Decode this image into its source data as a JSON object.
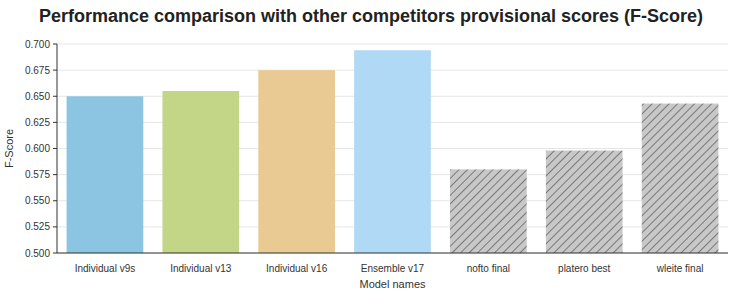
{
  "chart_data": {
    "type": "bar",
    "title": "Performance comparison with other competitors provisional scores (F-Score)",
    "x_label": "Model names",
    "y_label": "F-Score",
    "categories": [
      "Individual v9s",
      "Individual v13",
      "Individual v16",
      "Ensemble v17",
      "nofto final",
      "platero best",
      "wleite final"
    ],
    "values": [
      0.65,
      0.655,
      0.675,
      0.694,
      0.58,
      0.598,
      0.643
    ],
    "colors": [
      "#8cc5e2",
      "#c3d687",
      "#eaca93",
      "#afd9f4",
      "#c8c8c8",
      "#c8c8c8",
      "#c8c8c8"
    ],
    "ylim": [
      0.5,
      0.7
    ],
    "yticks": [
      {
        "value": 0.5,
        "label": "0.500"
      },
      {
        "value": 0.525,
        "label": "0.525"
      },
      {
        "value": 0.55,
        "label": "0.550"
      },
      {
        "value": 0.575,
        "label": "0.575"
      },
      {
        "value": 0.6,
        "label": "0.600"
      },
      {
        "value": 0.625,
        "label": "0.625"
      },
      {
        "value": 0.65,
        "label": "0.650"
      },
      {
        "value": 0.675,
        "label": "0.675"
      },
      {
        "value": 0.7,
        "label": "0.700"
      }
    ],
    "grid": true
  }
}
